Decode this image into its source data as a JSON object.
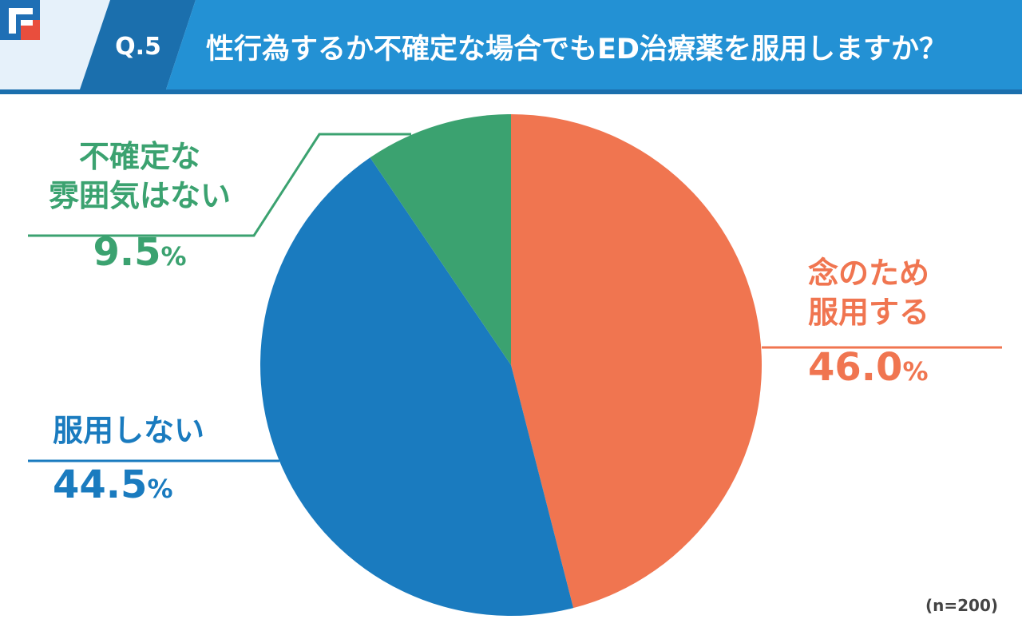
{
  "header": {
    "question_number": "Q.5",
    "title": "性行為するか不確定な場合でもED治療薬を服用しますか？",
    "logo": "brand-logo-icon"
  },
  "colors": {
    "header_light": "#e6f1fa",
    "header_dark": "#1b6fad",
    "header_main": "#2391d4",
    "orange": "#f07550",
    "blue": "#1a7bbf",
    "green": "#3ba270"
  },
  "chart_data": {
    "type": "pie",
    "start_angle": 0,
    "direction": "clockwise",
    "slices": [
      {
        "name_lines": [
          "念のため",
          "服用する"
        ],
        "value": 46.0,
        "value_text": "46.0",
        "unit": "%",
        "color": "#f07550"
      },
      {
        "name_lines": [
          "服用しない"
        ],
        "value": 44.5,
        "value_text": "44.5",
        "unit": "%",
        "color": "#1a7bbf"
      },
      {
        "name_lines": [
          "不確定な",
          "雰囲気はない"
        ],
        "value": 9.5,
        "value_text": "9.5",
        "unit": "%",
        "color": "#3ba270"
      }
    ],
    "note": "(n=200)"
  }
}
